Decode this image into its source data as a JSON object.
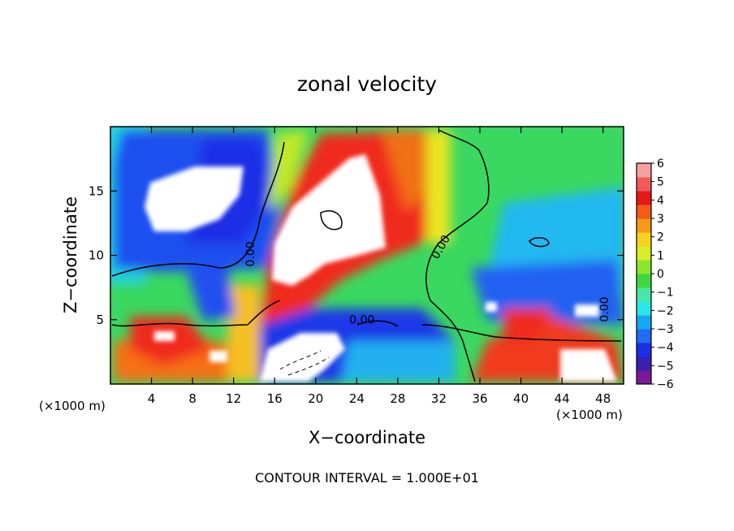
{
  "chart_data": {
    "type": "heatmap",
    "title": "zonal velocity",
    "xlabel": "X−coordinate",
    "ylabel": "Z−coordinate",
    "x_unit_left": "(×1000 m)",
    "x_unit_right": "(×1000 m)",
    "xlim": [
      0,
      50
    ],
    "ylim": [
      0,
      20
    ],
    "x_ticks": [
      4,
      8,
      12,
      16,
      20,
      24,
      28,
      32,
      36,
      40,
      44,
      48
    ],
    "y_ticks": [
      5,
      10,
      15
    ],
    "colorbar": {
      "ticks": [
        "6",
        "5",
        "4",
        "3",
        "2",
        "1",
        "0",
        "−1",
        "−2",
        "−3",
        "−4",
        "−5",
        "−6"
      ],
      "range": [
        -6,
        6
      ],
      "colors": [
        "#7a1a9a",
        "#3a1fb0",
        "#1a2fe6",
        "#1e6cf5",
        "#16a8f2",
        "#2ee6e6",
        "#48e6a8",
        "#40d840",
        "#8ce62c",
        "#d8ee2a",
        "#f5d21e",
        "#f59a18",
        "#f55a18",
        "#e81818",
        "#f25a5a",
        "#f5a0a0"
      ]
    },
    "contour_labels": [
      "0.00",
      "0.00",
      "0.00",
      "0.00"
    ],
    "footer": "CONTOUR INTERVAL = 1.000E+01"
  }
}
